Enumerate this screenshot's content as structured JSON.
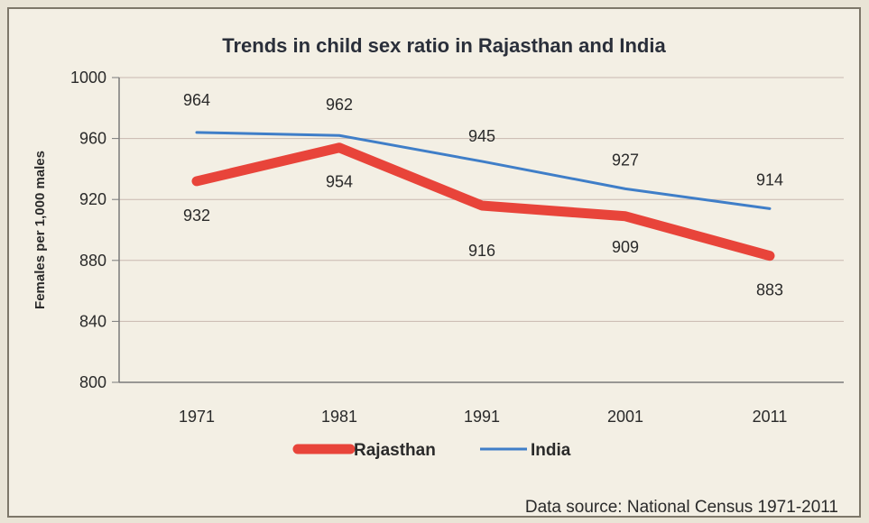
{
  "chart_data": {
    "type": "line",
    "title": "Trends in child sex ratio in Rajasthan and India",
    "xlabel": "",
    "ylabel": "Females per 1,000 males",
    "categories": [
      "1971",
      "1981",
      "1991",
      "2001",
      "2011"
    ],
    "ylim": [
      800,
      1000
    ],
    "yticks": [
      800,
      840,
      880,
      920,
      960,
      1000
    ],
    "grid": true,
    "legend_position": "bottom",
    "series": [
      {
        "name": "Rajasthan",
        "values": [
          932,
          954,
          916,
          909,
          883
        ],
        "color": "#e8443a",
        "labels": [
          "932",
          "954",
          "916",
          "909",
          "883"
        ]
      },
      {
        "name": "India",
        "values": [
          964,
          962,
          945,
          927,
          914
        ],
        "color": "#3f7ec8",
        "labels": [
          "964",
          "962",
          "945",
          "927",
          "914"
        ]
      }
    ],
    "source": "Data source: National Census 1971-2011"
  }
}
